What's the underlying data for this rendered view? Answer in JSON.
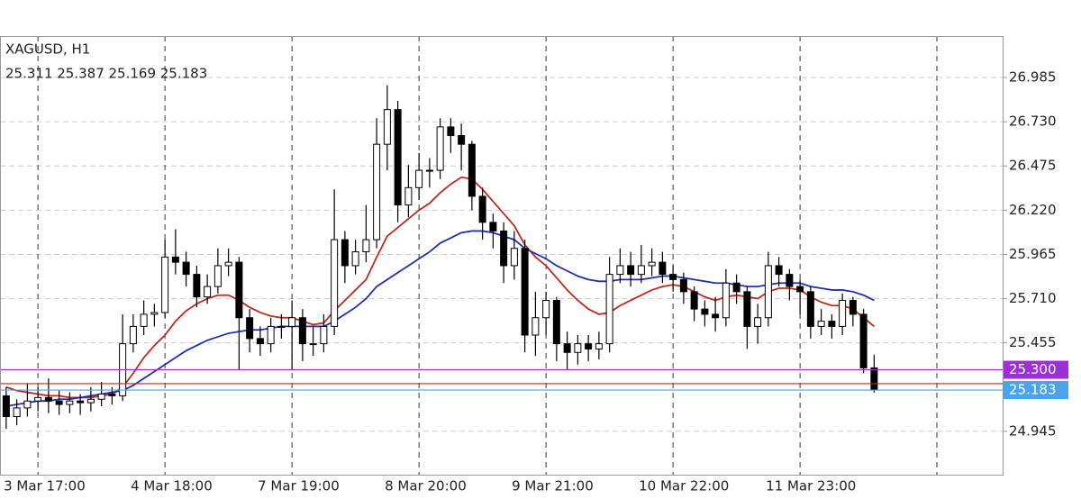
{
  "chart_data": {
    "type": "candlestick",
    "title": "XAGUSD, H1",
    "subtitle": "25.311 25.387 25.169 25.183",
    "categories": [
      null,
      null,
      null,
      "3 Mar 17:00",
      null,
      null,
      null,
      null,
      null,
      null,
      null,
      null,
      null,
      null,
      null,
      "4 Mar 18:00",
      null,
      null,
      null,
      null,
      null,
      null,
      null,
      null,
      null,
      null,
      null,
      "7 Mar 19:00",
      null,
      null,
      null,
      null,
      null,
      null,
      null,
      null,
      null,
      null,
      null,
      "8 Mar 20:00",
      null,
      null,
      null,
      null,
      null,
      null,
      null,
      null,
      null,
      null,
      null,
      "9 Mar 21:00",
      null,
      null,
      null,
      null,
      null,
      null,
      null,
      null,
      null,
      null,
      null,
      "10 Mar 22:00",
      null,
      null,
      null,
      null,
      null,
      null,
      null,
      null,
      null,
      null,
      null,
      "11 Mar 23:00",
      null,
      null,
      null,
      null,
      null,
      null,
      null
    ],
    "open": [
      25.15,
      25.03,
      25.08,
      25.12,
      25.14,
      25.12,
      25.1,
      25.12,
      25.11,
      25.13,
      25.16,
      25.15,
      25.45,
      25.55,
      25.62,
      25.63,
      25.95,
      25.92,
      25.85,
      25.72,
      25.78,
      25.9,
      25.92,
      25.6,
      25.48,
      25.45,
      25.55,
      25.55,
      25.6,
      25.45,
      25.45,
      25.55,
      26.05,
      25.9,
      25.98,
      26.05,
      26.6,
      26.8,
      26.25,
      26.35,
      26.45,
      26.45,
      26.7,
      26.65,
      26.6,
      26.3,
      26.15,
      26.1,
      25.9,
      26.0,
      25.5,
      25.6,
      25.7,
      25.45,
      25.4,
      25.45,
      25.42,
      25.45,
      25.85,
      25.9,
      25.85,
      25.9,
      25.92,
      25.85,
      25.82,
      25.75,
      25.65,
      25.62,
      25.6,
      25.8,
      25.75,
      25.55,
      25.6,
      25.9,
      25.85,
      25.78,
      25.75,
      25.55,
      25.58,
      25.55,
      25.7,
      25.62,
      25.311
    ],
    "high": [
      25.2,
      25.13,
      25.22,
      25.2,
      25.25,
      25.18,
      25.17,
      25.16,
      25.2,
      25.23,
      25.2,
      25.62,
      25.62,
      25.7,
      25.68,
      26.05,
      26.11,
      25.98,
      25.9,
      25.85,
      26.0,
      26.0,
      25.95,
      25.65,
      25.55,
      25.6,
      25.62,
      25.7,
      25.65,
      25.55,
      25.62,
      26.34,
      26.1,
      26.05,
      26.25,
      26.75,
      26.94,
      26.85,
      26.48,
      26.55,
      26.52,
      26.75,
      26.75,
      26.72,
      26.62,
      26.35,
      26.2,
      26.15,
      26.1,
      26.05,
      25.75,
      25.75,
      25.72,
      25.52,
      25.5,
      25.5,
      25.52,
      25.95,
      26.0,
      25.98,
      26.02,
      26.0,
      25.98,
      25.9,
      25.86,
      25.78,
      25.7,
      25.72,
      25.88,
      25.85,
      25.78,
      25.68,
      25.98,
      25.95,
      25.88,
      25.82,
      25.78,
      25.65,
      25.62,
      25.74,
      25.72,
      25.65,
      25.387
    ],
    "low": [
      24.96,
      24.98,
      25.03,
      25.06,
      25.05,
      25.04,
      25.05,
      25.04,
      25.06,
      25.09,
      25.1,
      25.12,
      25.4,
      25.5,
      25.55,
      25.6,
      25.85,
      25.78,
      25.66,
      25.68,
      25.74,
      25.84,
      25.3,
      25.4,
      25.38,
      25.4,
      25.48,
      25.3,
      25.35,
      25.38,
      25.4,
      25.5,
      25.8,
      25.85,
      25.92,
      26.0,
      26.45,
      26.15,
      26.18,
      26.28,
      26.35,
      26.4,
      26.55,
      26.45,
      26.22,
      26.05,
      26.0,
      25.8,
      25.82,
      25.4,
      25.38,
      25.5,
      25.35,
      25.3,
      25.33,
      25.35,
      25.36,
      25.4,
      25.8,
      25.78,
      25.8,
      25.84,
      25.8,
      25.75,
      25.68,
      25.58,
      25.55,
      25.52,
      25.55,
      25.68,
      25.42,
      25.45,
      25.55,
      25.78,
      25.7,
      25.62,
      25.48,
      25.5,
      25.48,
      25.5,
      25.55,
      25.28,
      25.169
    ],
    "close": [
      25.03,
      25.08,
      25.12,
      25.14,
      25.12,
      25.1,
      25.12,
      25.11,
      25.13,
      25.16,
      25.15,
      25.45,
      25.55,
      25.62,
      25.63,
      25.95,
      25.92,
      25.85,
      25.72,
      25.78,
      25.9,
      25.92,
      25.6,
      25.48,
      25.45,
      25.55,
      25.55,
      25.6,
      25.45,
      25.45,
      25.55,
      26.05,
      25.9,
      25.98,
      26.05,
      26.6,
      26.8,
      26.25,
      26.35,
      26.45,
      26.45,
      26.7,
      26.65,
      26.6,
      26.3,
      26.15,
      26.1,
      25.9,
      26.0,
      25.5,
      25.6,
      25.7,
      25.45,
      25.4,
      25.45,
      25.42,
      25.45,
      25.85,
      25.9,
      25.85,
      25.9,
      25.92,
      25.85,
      25.82,
      25.75,
      25.65,
      25.62,
      25.6,
      25.8,
      25.75,
      25.55,
      25.6,
      25.9,
      25.85,
      25.78,
      25.75,
      25.55,
      25.58,
      25.55,
      25.7,
      25.62,
      25.311,
      25.183
    ],
    "up_color": "#ffffff",
    "down_color": "#000000",
    "outline_color": "#000000",
    "series": [
      {
        "color": "#c0281b",
        "values": [
          25.2,
          25.18,
          25.17,
          25.16,
          25.15,
          25.15,
          25.14,
          25.14,
          25.14,
          25.15,
          25.16,
          25.2,
          25.28,
          25.37,
          25.44,
          25.5,
          25.58,
          25.64,
          25.68,
          25.71,
          25.73,
          25.73,
          25.7,
          25.66,
          25.63,
          25.61,
          25.6,
          25.6,
          25.58,
          25.56,
          25.57,
          25.64,
          25.7,
          25.76,
          25.82,
          25.95,
          26.07,
          26.12,
          26.17,
          26.22,
          26.26,
          26.32,
          26.37,
          26.41,
          26.4,
          26.34,
          26.27,
          26.2,
          26.13,
          26.02,
          25.95,
          25.9,
          25.83,
          25.76,
          25.7,
          25.65,
          25.62,
          25.63,
          25.67,
          25.7,
          25.73,
          25.76,
          25.78,
          25.79,
          25.78,
          25.75,
          25.72,
          25.7,
          25.72,
          25.73,
          25.72,
          25.71,
          25.75,
          25.77,
          25.77,
          25.76,
          25.72,
          25.69,
          25.67,
          25.67,
          25.65,
          25.6,
          25.55
        ]
      },
      {
        "color": "#1f2fb0",
        "values": [
          25.09,
          25.1,
          25.11,
          25.12,
          25.12,
          25.13,
          25.13,
          25.14,
          25.15,
          25.16,
          25.17,
          25.18,
          25.21,
          25.25,
          25.29,
          25.33,
          25.37,
          25.41,
          25.44,
          25.47,
          25.49,
          25.51,
          25.52,
          25.53,
          25.53,
          25.54,
          25.55,
          25.55,
          25.55,
          25.55,
          25.55,
          25.58,
          25.62,
          25.66,
          25.71,
          25.78,
          25.82,
          25.86,
          25.9,
          25.94,
          25.98,
          26.03,
          26.06,
          26.09,
          26.1,
          26.1,
          26.09,
          26.07,
          26.05,
          26.0,
          25.97,
          25.94,
          25.9,
          25.87,
          25.84,
          25.82,
          25.81,
          25.81,
          25.82,
          25.82,
          25.82,
          25.83,
          25.84,
          25.84,
          25.83,
          25.82,
          25.81,
          25.8,
          25.8,
          25.79,
          25.78,
          25.78,
          25.79,
          25.8,
          25.8,
          25.8,
          25.78,
          25.77,
          25.76,
          25.76,
          25.75,
          25.73,
          25.7
        ]
      }
    ],
    "levels": [
      {
        "value": 25.3,
        "label": "25.300",
        "color": "#9b30d9"
      },
      {
        "value": 25.22,
        "color": "#c0281b"
      },
      {
        "value": 25.183,
        "label": "25.183",
        "color": "#4ba3ee"
      }
    ],
    "ylim": [
      24.69,
      27.224
    ],
    "yticks": [
      24.945,
      25.455,
      {
        "value": 25.71,
        "label": "25.710"
      },
      25.965,
      {
        "value": 26.22,
        "label": "26.220"
      },
      26.475,
      {
        "value": 26.73,
        "label": "26.730"
      },
      26.985
    ],
    "grid": true
  }
}
